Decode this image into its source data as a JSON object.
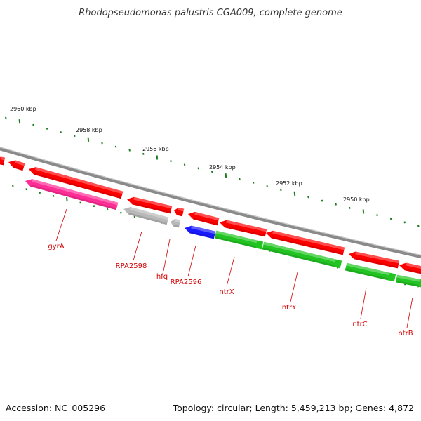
{
  "title": "Rhodopseudomonas palustris CGA009, complete genome",
  "footer": {
    "accession": "Accession: NC_005296",
    "summary": "Topology: circular; Length: 5,459,213 bp; Genes: 4,872"
  },
  "colors": {
    "backbone": "#8a8a8a",
    "tick": "#1e7d1e",
    "forward_gene": "#ff0000",
    "reverse_gene": "#22c422",
    "pink_gene": "#ff2d96",
    "gray_gene": "#b8b8b8",
    "blue_gene": "#1a1aff",
    "label": "#d40000"
  },
  "ruler": [
    {
      "label": "2960 kbp"
    },
    {
      "label": "2958 kbp"
    },
    {
      "label": "2956 kbp"
    },
    {
      "label": "2954 kbp"
    },
    {
      "label": "2952 kbp"
    },
    {
      "label": "2950 kbp"
    }
  ],
  "genes": [
    {
      "label": "gyrA"
    },
    {
      "label": "RPA2598"
    },
    {
      "label": "hfq"
    },
    {
      "label": "RPA2596"
    },
    {
      "label": "ntrX"
    },
    {
      "label": "ntrY"
    },
    {
      "label": "ntrC"
    },
    {
      "label": "ntrB"
    }
  ]
}
